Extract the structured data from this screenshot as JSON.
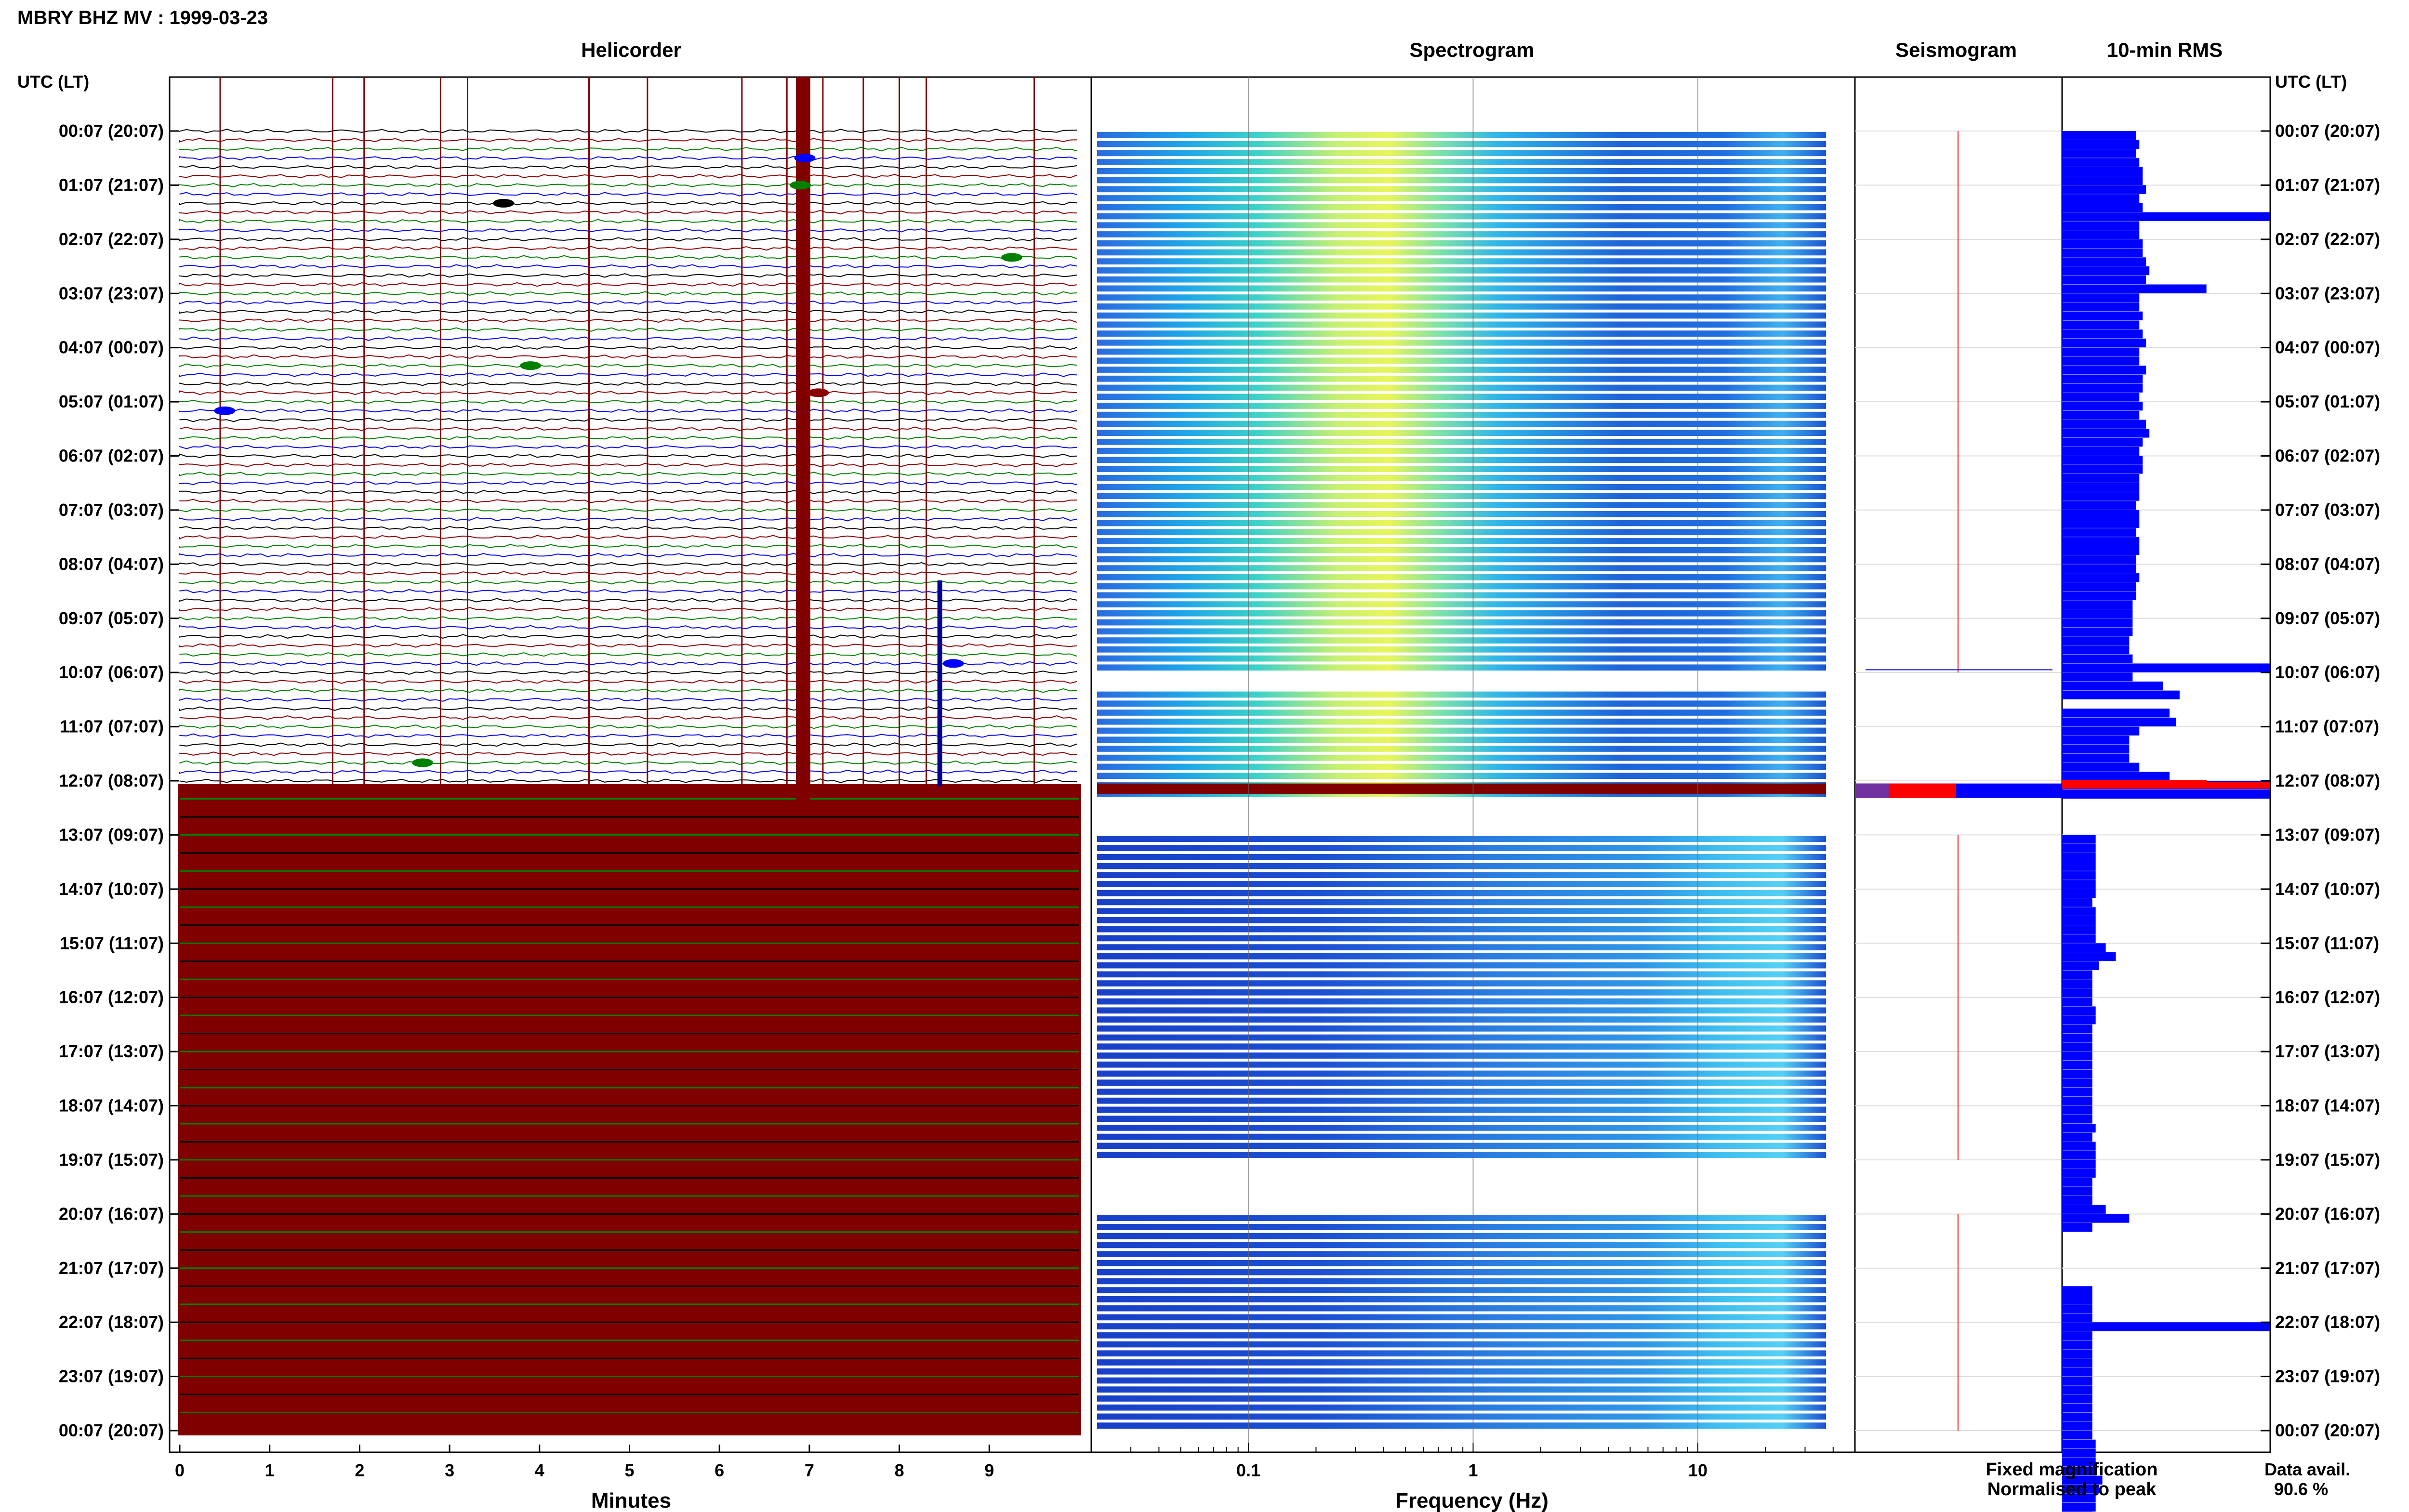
{
  "title": "MBRY BHZ MV : 1999-03-23",
  "panels": {
    "helicorder": "Helicorder",
    "spectrogram": "Spectrogram",
    "seismogram": "Seismogram",
    "rms": "10-min RMS"
  },
  "axis_header": "UTC (LT)",
  "xlabels": {
    "helicorder": "Minutes",
    "spectrogram": "Frequency (Hz)"
  },
  "legend": {
    "fixed": "Fixed magnification",
    "normalised": "Normalised to peak",
    "fixed_color": "#0000ff",
    "normalised_color": "#ff0000"
  },
  "availability": {
    "label": "Data avail.",
    "value": "90.6 %"
  },
  "colors": {
    "trace_cycle": [
      "#000000",
      "#8b0000",
      "#008000",
      "#0000ff"
    ],
    "saturated": "#800000",
    "rms_bar": "#0000ff",
    "rms_peak": "#ff0000"
  },
  "chart_data": [
    {
      "type": "line",
      "name": "Helicorder",
      "title": "Helicorder",
      "xlabel": "Minutes",
      "ylabel": "UTC (LT)",
      "xlim": [
        0,
        10
      ],
      "x_ticks": [
        "0",
        "1",
        "2",
        "3",
        "4",
        "5",
        "6",
        "7",
        "8",
        "9"
      ],
      "y_tick_labels": [
        "00:07 (20:07)",
        "01:07 (21:07)",
        "02:07 (22:07)",
        "03:07 (23:07)",
        "04:07 (00:07)",
        "05:07 (01:07)",
        "06:07 (02:07)",
        "07:07 (03:07)",
        "08:07 (04:07)",
        "09:07 (05:07)",
        "10:07 (06:07)",
        "11:07 (07:07)",
        "12:07 (08:07)",
        "13:07 (09:07)",
        "14:07 (10:07)",
        "15:07 (11:07)",
        "16:07 (12:07)",
        "17:07 (13:07)",
        "18:07 (14:07)",
        "19:07 (15:07)",
        "20:07 (16:07)",
        "21:07 (17:07)",
        "22:07 (18:07)",
        "23:07 (19:07)",
        "00:07 (20:07)"
      ],
      "rows_per_hour": 6,
      "saturated_from_row": 73,
      "events": [
        {
          "row": 3,
          "minute": 6.95
        },
        {
          "row": 6,
          "minute": 6.9
        },
        {
          "row": 8,
          "minute": 3.6
        },
        {
          "row": 14,
          "minute": 9.25
        },
        {
          "row": 26,
          "minute": 3.9
        },
        {
          "row": 29,
          "minute": 7.1
        },
        {
          "row": 31,
          "minute": 0.5
        },
        {
          "row": 59,
          "minute": 8.6
        },
        {
          "row": 70,
          "minute": 2.7
        }
      ]
    },
    {
      "type": "heatmap",
      "name": "Spectrogram",
      "title": "Spectrogram",
      "xlabel": "Frequency (Hz)",
      "xscale": "log",
      "xlim": [
        0.02,
        50
      ],
      "x_tick_labels": [
        "0.1",
        "1",
        "10"
      ],
      "x_tick_values": [
        0.1,
        1,
        10
      ],
      "dominant_band_hz": [
        0.2,
        0.6
      ],
      "data_gaps_hours": [
        [
          10.0,
          10.2
        ],
        [
          12.2,
          13.0
        ],
        [
          19.0,
          20.0
        ]
      ]
    },
    {
      "type": "line",
      "name": "Seismogram",
      "title": "Seismogram"
    },
    {
      "type": "bar",
      "name": "10-min RMS",
      "title": "10-min RMS",
      "orientation": "horizontal",
      "values": [
        2.2,
        2.3,
        2.2,
        2.3,
        2.4,
        2.4,
        2.5,
        2.3,
        2.4,
        6.2,
        2.3,
        2.3,
        2.4,
        2.4,
        2.5,
        2.6,
        2.5,
        4.3,
        2.3,
        2.3,
        2.4,
        2.3,
        2.4,
        2.5,
        2.3,
        2.3,
        2.5,
        2.4,
        2.4,
        2.3,
        2.4,
        2.3,
        2.5,
        2.6,
        2.4,
        2.3,
        2.4,
        2.4,
        2.3,
        2.3,
        2.3,
        2.2,
        2.3,
        2.3,
        2.2,
        2.3,
        2.3,
        2.2,
        2.2,
        2.3,
        2.2,
        2.2,
        2.1,
        2.1,
        2.1,
        2.1,
        2.0,
        2.0,
        2.1,
        6.2,
        2.1,
        3.0,
        3.5,
        0,
        3.2,
        3.4,
        2.3,
        2.0,
        2.0,
        2.0,
        2.3,
        3.2,
        6.2,
        6.2,
        0,
        0,
        0,
        0,
        1.0,
        1.0,
        1.0,
        1.0,
        1.0,
        1.0,
        1.0,
        0.9,
        1.0,
        1.0,
        1.0,
        1.0,
        1.3,
        1.6,
        1.1,
        0.9,
        0.9,
        0.9,
        0.9,
        1.0,
        1.0,
        0.9,
        0.9,
        0.9,
        0.9,
        0.9,
        0.9,
        0.9,
        0.9,
        0.9,
        0.9,
        0.9,
        1.0,
        0.9,
        1.0,
        1.0,
        1.0,
        1.0,
        0.9,
        0.9,
        0.9,
        1.3,
        2.0,
        0.9,
        0,
        0,
        0,
        0,
        0,
        0,
        0.9,
        0.9,
        0.9,
        0.9,
        6.2,
        0.9,
        0.9,
        0.9,
        0.9,
        0.9,
        0.9,
        0.9,
        0.9,
        0.9,
        0.9,
        0.9,
        0.9,
        1.0,
        1.0,
        1.0,
        1.0,
        1.2,
        1.1,
        1.0,
        1.0,
        0.9,
        0.9,
        0.9
      ],
      "xlim": [
        0,
        6.2
      ]
    }
  ]
}
